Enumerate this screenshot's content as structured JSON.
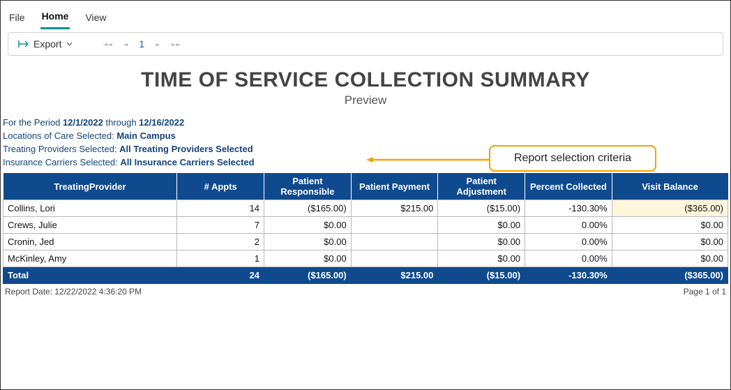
{
  "menu": {
    "items": [
      "File",
      "Home",
      "View"
    ],
    "active_index": 1
  },
  "toolbar": {
    "export_label": "Export",
    "page_current": "1"
  },
  "report": {
    "title": "TIME OF SERVICE COLLECTION SUMMARY",
    "subtitle": "Preview",
    "period_prefix": "For the Period ",
    "period_from": "12/1/2022",
    "period_join": " through ",
    "period_to": "12/16/2022",
    "criteria": [
      {
        "label": "Locations of Care Selected:",
        "value": "Main Campus"
      },
      {
        "label": "Treating Providers Selected:",
        "value": "All Treating Providers Selected"
      },
      {
        "label": "Insurance Carriers Selected:",
        "value": "All Insurance Carriers Selected"
      }
    ],
    "columns": [
      "TreatingProvider",
      "# Appts",
      "Patient Responsible",
      "Patient Payment",
      "Patient  Adjustment",
      "Percent Collected",
      "Visit Balance"
    ],
    "col_widths_pct": [
      24,
      12,
      12,
      12,
      12,
      12,
      16
    ],
    "rows": [
      {
        "name": "Collins, Lori",
        "appts": "14",
        "responsible": "($165.00)",
        "payment": "$215.00",
        "adjustment": "($15.00)",
        "percent": "-130.30%",
        "balance": "($365.00)",
        "balance_highlight": true
      },
      {
        "name": "Crews, Julie",
        "appts": "7",
        "responsible": "$0.00",
        "payment": "",
        "adjustment": "$0.00",
        "percent": "0.00%",
        "balance": "$0.00"
      },
      {
        "name": "Cronin, Jed",
        "appts": "2",
        "responsible": "$0.00",
        "payment": "",
        "adjustment": "$0.00",
        "percent": "0.00%",
        "balance": "$0.00"
      },
      {
        "name": "McKinley, Amy",
        "appts": "1",
        "responsible": "$0.00",
        "payment": "",
        "adjustment": "$0.00",
        "percent": "0.00%",
        "balance": "$0.00"
      }
    ],
    "total_row": {
      "name": "Total",
      "appts": "24",
      "responsible": "($165.00)",
      "payment": "$215.00",
      "adjustment": "($15.00)",
      "percent": "-130.30%",
      "balance": "($365.00)"
    },
    "footer_left": "Report Date: 12/22/2022 4:36:20 PM",
    "footer_right": "Page 1 of 1"
  },
  "callout": {
    "text": "Report selection criteria",
    "border_color": "#f5a100"
  },
  "colors": {
    "header_bg": "#104a8e",
    "header_fg": "#ffffff",
    "criteria_fg": "#13447c",
    "accent": "#0f8f8f",
    "highlight_bg": "#fff6dc"
  }
}
